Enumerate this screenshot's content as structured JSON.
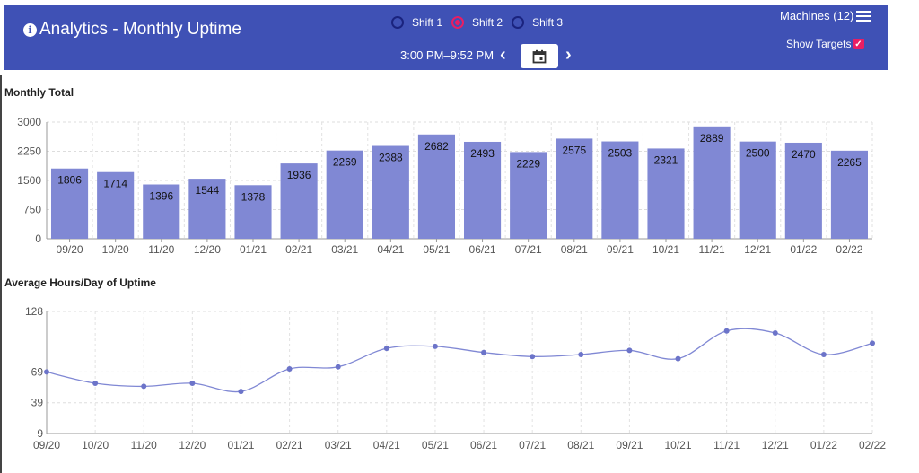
{
  "header": {
    "title": "Analytics - Monthly Uptime",
    "shifts": [
      {
        "label": "Shift 1",
        "selected": false
      },
      {
        "label": "Shift 2",
        "selected": true
      },
      {
        "label": "Shift 3",
        "selected": false
      }
    ],
    "time_range": "3:00 PM–9:52 PM",
    "machines_label": "Machines (12)",
    "show_targets_label": "Show Targets",
    "show_targets_checked": true,
    "accent_color": "#3f51b5",
    "highlight_color": "#e91e63"
  },
  "chart_data": [
    {
      "type": "bar",
      "title": "Monthly Total",
      "categories": [
        "09/20",
        "10/20",
        "11/20",
        "12/20",
        "01/21",
        "02/21",
        "03/21",
        "04/21",
        "05/21",
        "06/21",
        "07/21",
        "08/21",
        "09/21",
        "10/21",
        "11/21",
        "12/21",
        "01/22",
        "02/22"
      ],
      "values": [
        1806,
        1714,
        1396,
        1544,
        1378,
        1936,
        2269,
        2388,
        2682,
        2493,
        2229,
        2575,
        2503,
        2321,
        2889,
        2500,
        2470,
        2265
      ],
      "ylim": [
        0,
        3000
      ],
      "yticks": [
        0,
        750,
        1500,
        2250,
        3000
      ],
      "bar_color": "#8088d4",
      "grid": true
    },
    {
      "type": "line",
      "title": "Average Hours/Day of Uptime",
      "categories": [
        "09/20",
        "10/20",
        "11/20",
        "12/20",
        "01/21",
        "02/21",
        "03/21",
        "04/21",
        "05/21",
        "06/21",
        "07/21",
        "08/21",
        "09/21",
        "10/21",
        "11/21",
        "12/21",
        "01/22",
        "02/22"
      ],
      "values": [
        69,
        58,
        55,
        58,
        50,
        72,
        74,
        92,
        94,
        88,
        84,
        86,
        90,
        82,
        109,
        107,
        86,
        97
      ],
      "ylim": [
        9,
        128
      ],
      "yticks": [
        9,
        39,
        69,
        128
      ],
      "line_color": "#8088d4",
      "grid": true
    }
  ]
}
